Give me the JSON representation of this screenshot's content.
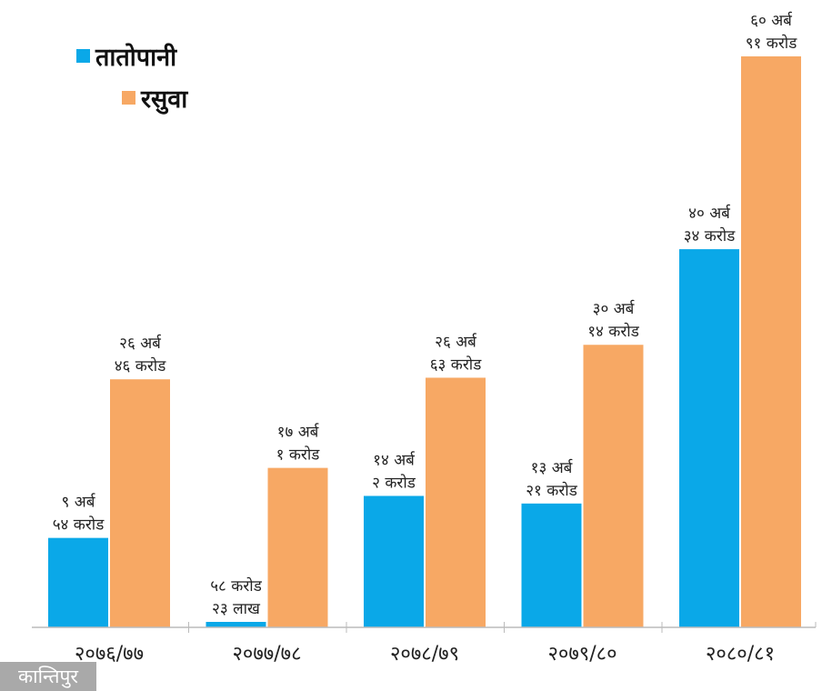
{
  "chart_data": {
    "type": "bar",
    "title": "",
    "xlabel": "",
    "ylabel": "",
    "unit": "crore",
    "ylim": [
      0,
      6091
    ],
    "grid": false,
    "legend_position": "top-left",
    "categories": [
      "२०७६/७७",
      "२०७७/७८",
      "२०७८/७९",
      "२०७९/८०",
      "२०८०/८१"
    ],
    "series": [
      {
        "name": "तातोपानी",
        "color": "#0aa8e8",
        "values": [
          954,
          58.23,
          1402,
          1321,
          4034
        ],
        "labels": [
          [
            "९ अर्ब",
            "५४ करोड"
          ],
          [
            "५८ करोड",
            "२३ लाख"
          ],
          [
            "१४ अर्ब",
            "२ करोड"
          ],
          [
            "१३ अर्ब",
            "२१ करोड"
          ],
          [
            "४० अर्ब",
            "३४ करोड"
          ]
        ]
      },
      {
        "name": "रसुवा",
        "color": "#f7a864",
        "values": [
          2646,
          1701,
          2663,
          3014,
          6091
        ],
        "labels": [
          [
            "२६ अर्ब",
            "४६ करोड"
          ],
          [
            "१७ अर्ब",
            "१ करोड"
          ],
          [
            "२६ अर्ब",
            "६३ करोड"
          ],
          [
            "३० अर्ब",
            "१४ करोड"
          ],
          [
            "६० अर्ब",
            "९१ करोड"
          ]
        ]
      }
    ]
  },
  "logo": {
    "text": "कान्तिपुर"
  }
}
